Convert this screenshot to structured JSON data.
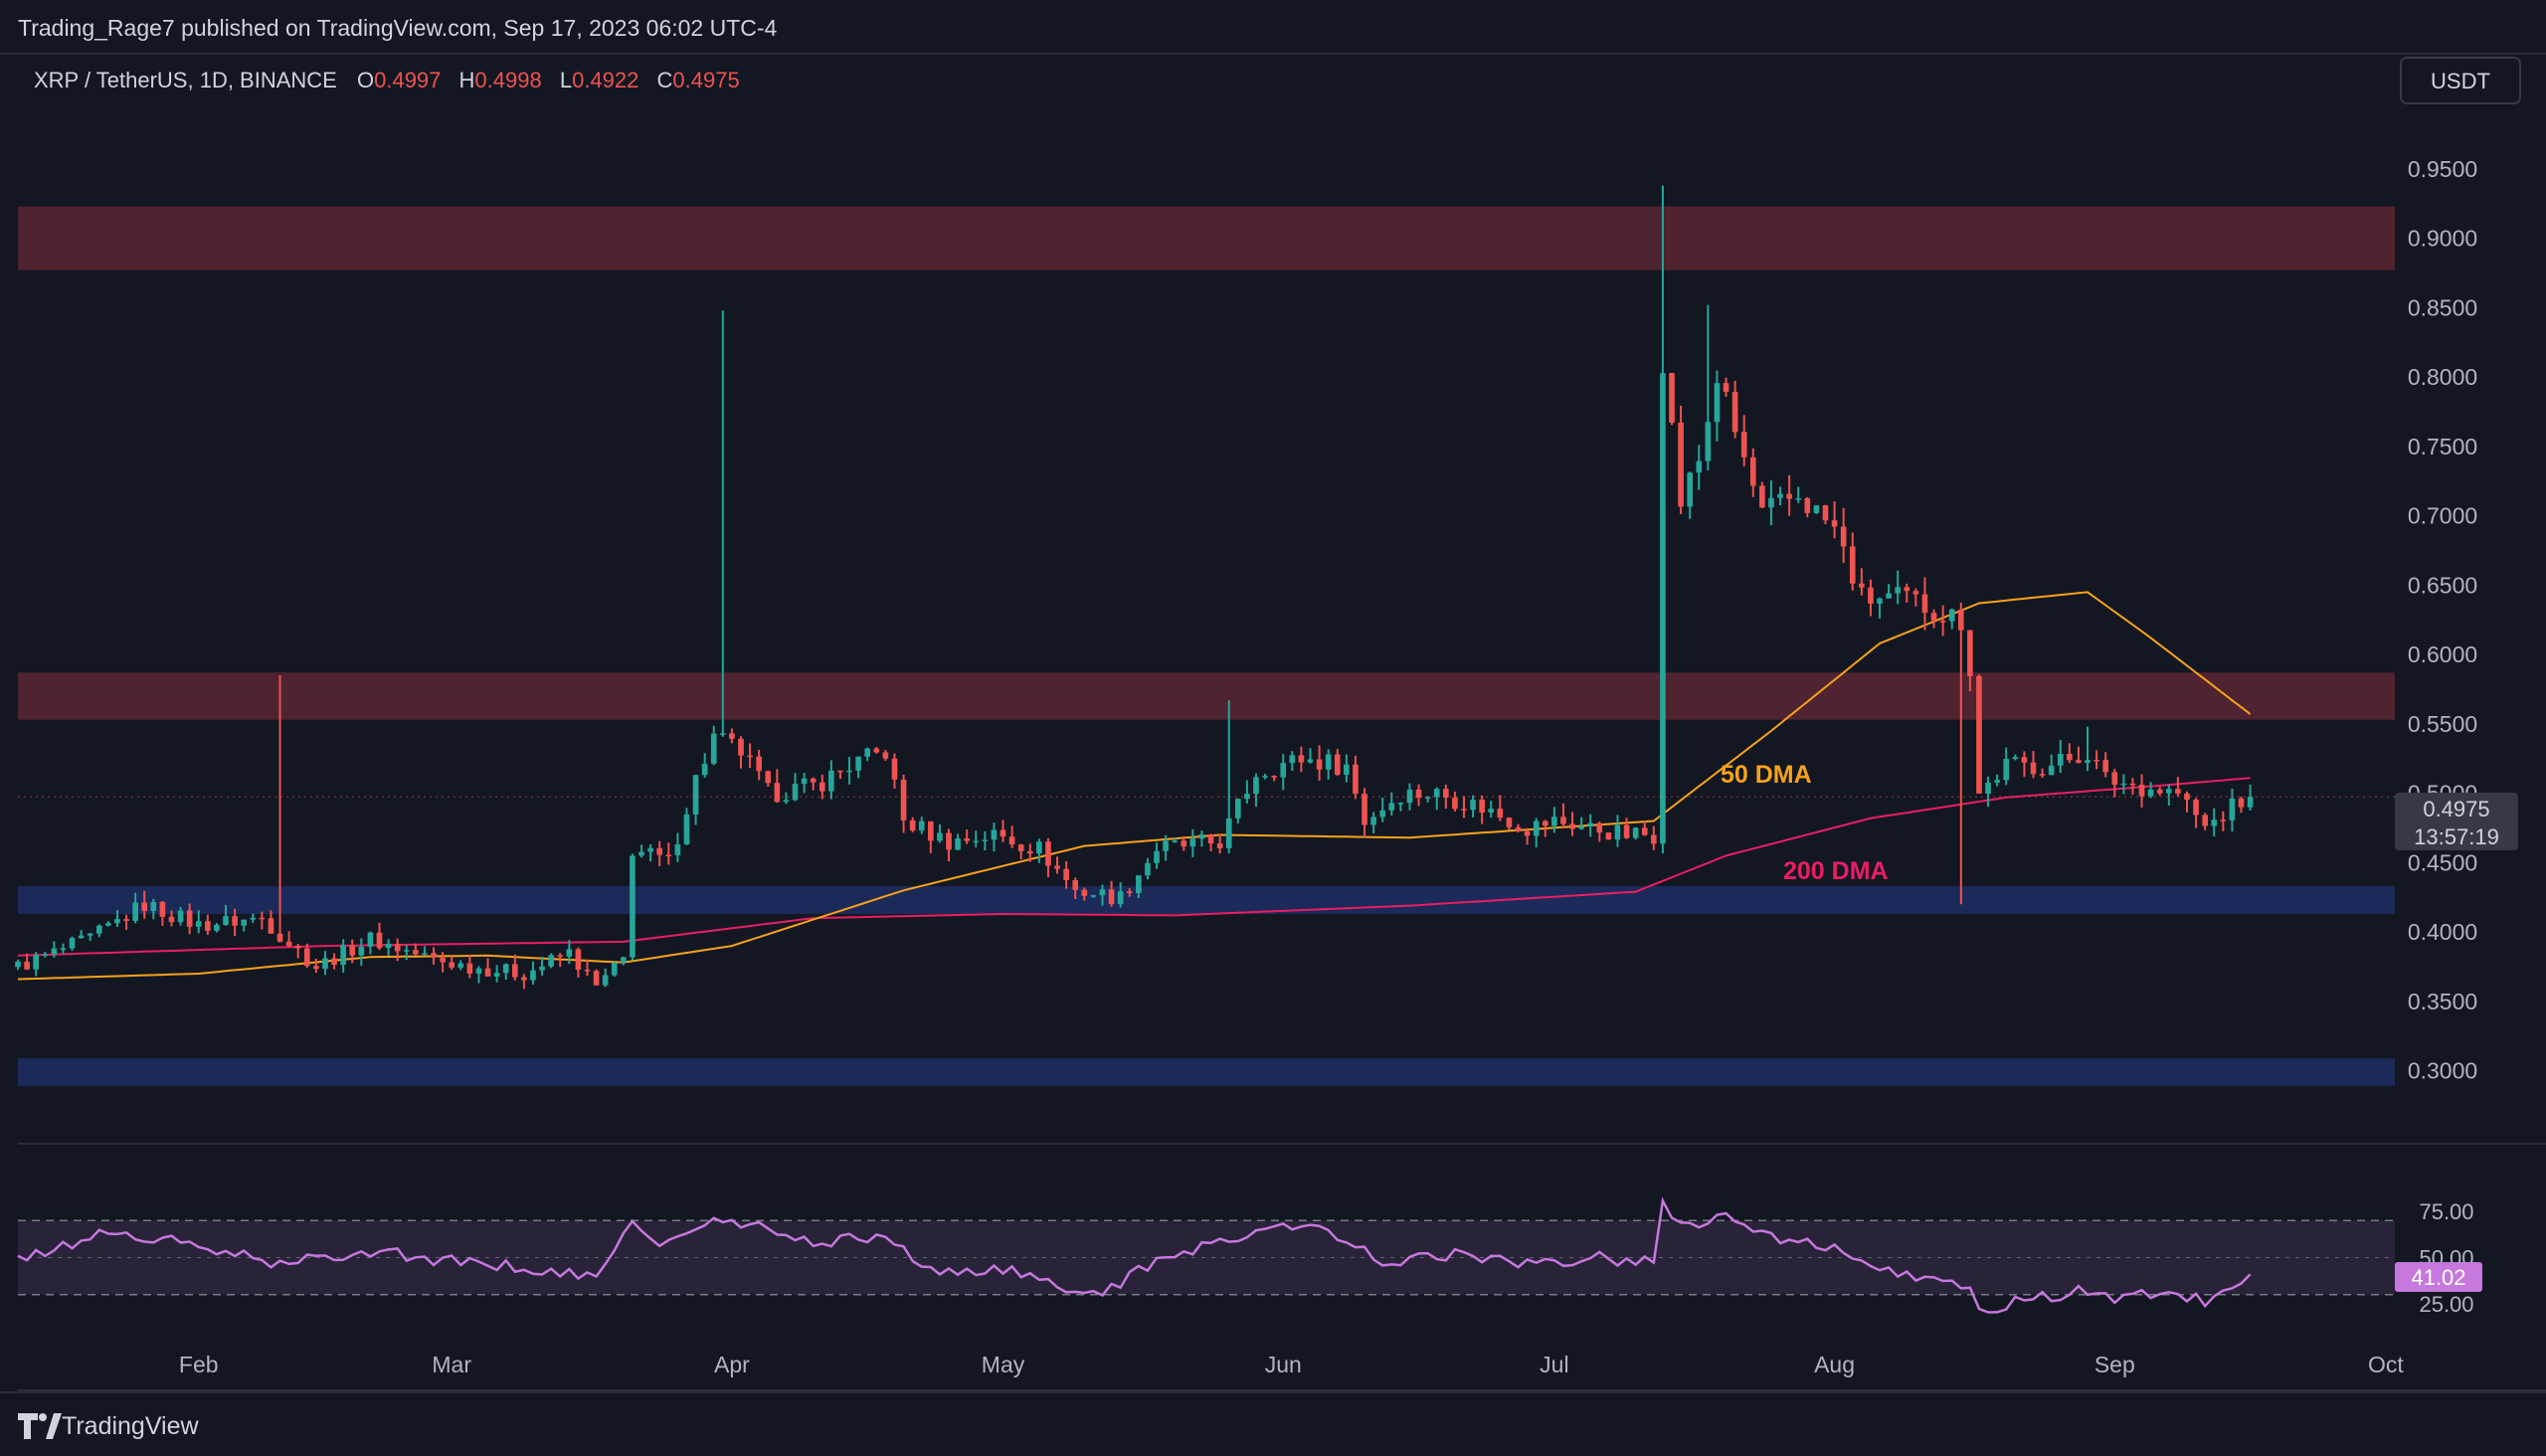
{
  "publish_line": "Trading_Rage7 published on TradingView.com, Sep 17, 2023 06:02 UTC-4",
  "symbol": {
    "name": "XRP / TetherUS, 1D, BINANCE",
    "o_label": "O",
    "o_value": "0.4997",
    "h_label": "H",
    "h_value": "0.4998",
    "l_label": "L",
    "l_value": "0.4922",
    "c_label": "C",
    "c_value": "0.4975"
  },
  "currency_button": "USDT",
  "price_tag": {
    "value": "0.4975",
    "countdown": "13:57:19"
  },
  "rsi_tag": "41.02",
  "annotations": {
    "dma50": "50 DMA",
    "dma200": "200 DMA"
  },
  "brand": "TradingView",
  "colors": {
    "background": "#131722",
    "up": "#26a69a",
    "down": "#ef5350",
    "dma50": "#f7a21b",
    "dma200": "#e91e63",
    "rsi": "#c678dd",
    "resistance_zone": "#5a2632",
    "support_zone": "#1f2e63",
    "text": "#b2b5be"
  },
  "chart_data": [
    {
      "type": "candlestick",
      "title": "XRP / TetherUS, 1D, BINANCE",
      "ylim": [
        0.2775,
        0.97
      ],
      "y_ticks": [
        "0.9500",
        "0.9000",
        "0.8500",
        "0.8000",
        "0.7500",
        "0.7000",
        "0.6500",
        "0.6000",
        "0.5500",
        "0.5000",
        "0.4500",
        "0.4000",
        "0.3500",
        "0.3000"
      ],
      "x_ticks": [
        {
          "label": "Feb",
          "date": "2023-02-01"
        },
        {
          "label": "Mar",
          "date": "2023-03-01"
        },
        {
          "label": "Apr",
          "date": "2023-04-01"
        },
        {
          "label": "May",
          "date": "2023-05-01"
        },
        {
          "label": "Jun",
          "date": "2023-06-01"
        },
        {
          "label": "Jul",
          "date": "2023-07-01"
        },
        {
          "label": "Aug",
          "date": "2023-08-01"
        },
        {
          "label": "Sep",
          "date": "2023-09-01"
        },
        {
          "label": "Oct",
          "date": "2023-10-01"
        }
      ],
      "x_range": [
        "2023-01-12",
        "2023-10-02"
      ],
      "zones": [
        {
          "kind": "resistance",
          "from": 0.877,
          "to": 0.923
        },
        {
          "kind": "resistance",
          "from": 0.553,
          "to": 0.587
        },
        {
          "kind": "support",
          "from": 0.413,
          "to": 0.433
        },
        {
          "kind": "support",
          "from": 0.289,
          "to": 0.309
        }
      ],
      "anchors": [
        [
          "2023-01-12",
          0.375
        ],
        [
          "2023-01-20",
          0.395
        ],
        [
          "2023-01-26",
          0.42
        ],
        [
          "2023-02-01",
          0.405
        ],
        [
          "2023-02-08",
          0.41
        ],
        [
          "2023-02-14",
          0.375
        ],
        [
          "2023-02-20",
          0.395
        ],
        [
          "2023-02-27",
          0.38
        ],
        [
          "2023-03-03",
          0.375
        ],
        [
          "2023-03-09",
          0.37
        ],
        [
          "2023-03-14",
          0.385
        ],
        [
          "2023-03-17",
          0.36
        ],
        [
          "2023-03-20",
          0.38
        ],
        [
          "2023-03-21",
          0.46
        ],
        [
          "2023-03-25",
          0.45
        ],
        [
          "2023-03-28",
          0.51
        ],
        [
          "2023-03-30",
          0.54
        ],
        [
          "2023-04-02",
          0.53
        ],
        [
          "2023-04-05",
          0.5
        ],
        [
          "2023-04-10",
          0.505
        ],
        [
          "2023-04-14",
          0.52
        ],
        [
          "2023-04-18",
          0.53
        ],
        [
          "2023-04-20",
          0.48
        ],
        [
          "2023-04-25",
          0.465
        ],
        [
          "2023-04-30",
          0.47
        ],
        [
          "2023-05-05",
          0.46
        ],
        [
          "2023-05-09",
          0.43
        ],
        [
          "2023-05-14",
          0.425
        ],
        [
          "2023-05-18",
          0.46
        ],
        [
          "2023-05-25",
          0.465
        ],
        [
          "2023-05-29",
          0.515
        ],
        [
          "2023-06-03",
          0.525
        ],
        [
          "2023-06-08",
          0.52
        ],
        [
          "2023-06-10",
          0.48
        ],
        [
          "2023-06-14",
          0.5
        ],
        [
          "2023-06-18",
          0.5
        ],
        [
          "2023-06-23",
          0.49
        ],
        [
          "2023-06-28",
          0.475
        ],
        [
          "2023-07-01",
          0.48
        ],
        [
          "2023-07-05",
          0.475
        ],
        [
          "2023-07-09",
          0.47
        ],
        [
          "2023-07-12",
          0.47
        ],
        [
          "2023-07-13",
          0.815
        ],
        [
          "2023-07-15",
          0.71
        ],
        [
          "2023-07-17",
          0.74
        ],
        [
          "2023-07-19",
          0.8
        ],
        [
          "2023-07-21",
          0.76
        ],
        [
          "2023-07-24",
          0.7
        ],
        [
          "2023-07-28",
          0.715
        ],
        [
          "2023-08-01",
          0.69
        ],
        [
          "2023-08-04",
          0.64
        ],
        [
          "2023-08-09",
          0.64
        ],
        [
          "2023-08-15",
          0.625
        ],
        [
          "2023-08-16",
          0.59
        ],
        [
          "2023-08-17",
          0.5
        ],
        [
          "2023-08-20",
          0.52
        ],
        [
          "2023-08-25",
          0.52
        ],
        [
          "2023-08-29",
          0.53
        ],
        [
          "2023-08-31",
          0.51
        ],
        [
          "2023-09-04",
          0.505
        ],
        [
          "2023-09-08",
          0.5
        ],
        [
          "2023-09-11",
          0.475
        ],
        [
          "2023-09-14",
          0.49
        ],
        [
          "2023-09-16",
          0.4975
        ]
      ],
      "dma50": [
        [
          "2023-01-12",
          0.366
        ],
        [
          "2023-02-01",
          0.37
        ],
        [
          "2023-02-20",
          0.382
        ],
        [
          "2023-03-05",
          0.383
        ],
        [
          "2023-03-20",
          0.378
        ],
        [
          "2023-04-01",
          0.39
        ],
        [
          "2023-04-20",
          0.43
        ],
        [
          "2023-05-10",
          0.462
        ],
        [
          "2023-05-25",
          0.47
        ],
        [
          "2023-06-15",
          0.468
        ],
        [
          "2023-07-12",
          0.48
        ],
        [
          "2023-07-25",
          0.545
        ],
        [
          "2023-08-06",
          0.608
        ],
        [
          "2023-08-17",
          0.637
        ],
        [
          "2023-08-29",
          0.645
        ],
        [
          "2023-09-05",
          0.612
        ],
        [
          "2023-09-16",
          0.557
        ]
      ],
      "dma200": [
        [
          "2023-01-12",
          0.383
        ],
        [
          "2023-02-15",
          0.39
        ],
        [
          "2023-03-20",
          0.393
        ],
        [
          "2023-04-10",
          0.41
        ],
        [
          "2023-05-01",
          0.413
        ],
        [
          "2023-05-20",
          0.412
        ],
        [
          "2023-06-15",
          0.419
        ],
        [
          "2023-07-10",
          0.429
        ],
        [
          "2023-07-20",
          0.455
        ],
        [
          "2023-08-05",
          0.482
        ],
        [
          "2023-08-20",
          0.497
        ],
        [
          "2023-09-05",
          0.505
        ],
        [
          "2023-09-16",
          0.511
        ]
      ],
      "last_close": 0.4975
    },
    {
      "type": "line",
      "title": "RSI",
      "ylim": [
        14.8,
        101.8
      ],
      "y_ticks": [
        "75.00",
        "50.00",
        "25.00"
      ],
      "bands": [
        70,
        30
      ],
      "midline": 50,
      "last_value": 41.02,
      "anchors": [
        [
          "2023-01-12",
          48
        ],
        [
          "2023-01-22",
          64
        ],
        [
          "2023-02-01",
          56
        ],
        [
          "2023-02-10",
          46
        ],
        [
          "2023-02-20",
          54
        ],
        [
          "2023-03-01",
          48
        ],
        [
          "2023-03-10",
          44
        ],
        [
          "2023-03-17",
          38
        ],
        [
          "2023-03-21",
          72
        ],
        [
          "2023-03-24",
          55
        ],
        [
          "2023-03-30",
          70
        ],
        [
          "2023-04-04",
          66
        ],
        [
          "2023-04-10",
          58
        ],
        [
          "2023-04-18",
          62
        ],
        [
          "2023-04-23",
          42
        ],
        [
          "2023-05-01",
          44
        ],
        [
          "2023-05-08",
          32
        ],
        [
          "2023-05-12",
          32
        ],
        [
          "2023-05-20",
          52
        ],
        [
          "2023-05-30",
          66
        ],
        [
          "2023-06-05",
          66
        ],
        [
          "2023-06-12",
          48
        ],
        [
          "2023-06-20",
          52
        ],
        [
          "2023-06-28",
          46
        ],
        [
          "2023-07-05",
          50
        ],
        [
          "2023-07-12",
          48
        ],
        [
          "2023-07-13",
          81
        ],
        [
          "2023-07-15",
          68
        ],
        [
          "2023-07-20",
          72
        ],
        [
          "2023-07-26",
          58
        ],
        [
          "2023-08-01",
          56
        ],
        [
          "2023-08-05",
          42
        ],
        [
          "2023-08-12",
          40
        ],
        [
          "2023-08-16",
          33
        ],
        [
          "2023-08-17",
          20
        ],
        [
          "2023-08-22",
          27
        ],
        [
          "2023-08-29",
          32
        ],
        [
          "2023-09-02",
          28
        ],
        [
          "2023-09-06",
          32
        ],
        [
          "2023-09-11",
          26
        ],
        [
          "2023-09-14",
          36
        ],
        [
          "2023-09-16",
          41
        ]
      ]
    }
  ]
}
